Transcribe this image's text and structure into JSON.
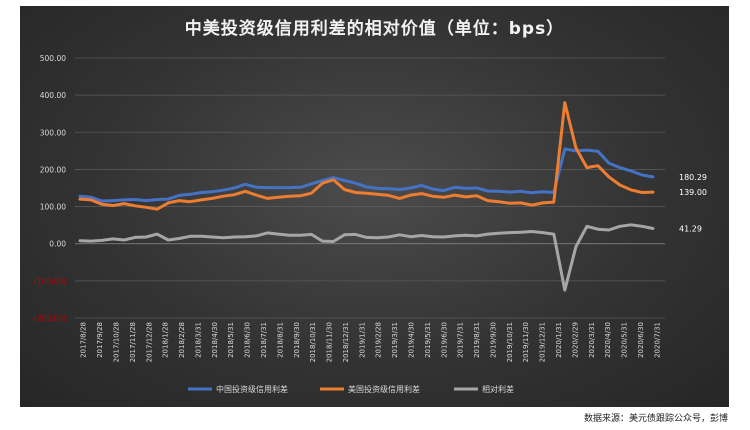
{
  "chart_data": {
    "type": "line",
    "title": "中美投资级信用利差的相对价值（单位：bps）",
    "xlabel": "",
    "ylabel": "",
    "ylim": [
      -200,
      500
    ],
    "y_ticks": [
      500,
      400,
      300,
      200,
      100,
      0,
      -100,
      -200
    ],
    "y_tick_labels": [
      "500.00",
      "400.00",
      "300.00",
      "200.00",
      "100.00",
      "0.00",
      "(100.00)",
      "(200.00)"
    ],
    "negative_tick_color": "#c00000",
    "tick_label_color": "#d9d9d9",
    "grid": true,
    "legend_position": "bottom",
    "x_tick_labels": [
      "2017/8/28",
      "2017/9/28",
      "2017/10/28",
      "2017/11/28",
      "2017/12/28",
      "2018/1/28",
      "2018/2/28",
      "2018/3/31",
      "2018/4/30",
      "2018/5/31",
      "2018/6/30",
      "2018/7/31",
      "2018/8/31",
      "2018/9/30",
      "2018/10/31",
      "2018/11/30",
      "2018/12/31",
      "2019/1/31",
      "2019/2/28",
      "2019/3/31",
      "2019/4/30",
      "2019/5/31",
      "2019/6/30",
      "2019/7/31",
      "2019/8/31",
      "2019/9/30",
      "2019/10/31",
      "2019/11/30",
      "2019/12/31",
      "2020/1/31",
      "2020/2/29",
      "2020/3/31",
      "2020/4/30",
      "2020/5/31",
      "2020/6/30",
      "2020/7/31"
    ],
    "series": [
      {
        "name": "中国投资级信用利差",
        "color": "#4472c4",
        "values": [
          128,
          125,
          115,
          116,
          118,
          119,
          116,
          119,
          120,
          130,
          133,
          138,
          140,
          144,
          150,
          160,
          152,
          151,
          151,
          151,
          152,
          161,
          170,
          178,
          170,
          163,
          153,
          149,
          148,
          146,
          150,
          157,
          147,
          143,
          152,
          149,
          150,
          142,
          141,
          139,
          141,
          137,
          140,
          138,
          255,
          250,
          252,
          249,
          217,
          205,
          196,
          185,
          180
        ],
        "end_label": "180.29"
      },
      {
        "name": "美国投资级信用利差",
        "color": "#ed7d31",
        "values": [
          120,
          118,
          106,
          103,
          108,
          102,
          98,
          93,
          110,
          116,
          113,
          118,
          122,
          128,
          132,
          141,
          131,
          122,
          125,
          128,
          129,
          136,
          163,
          172,
          146,
          138,
          136,
          133,
          130,
          122,
          131,
          135,
          128,
          125,
          131,
          126,
          129,
          116,
          113,
          109,
          110,
          104,
          110,
          112,
          380,
          258,
          205,
          210,
          180,
          158,
          145,
          138,
          139
        ],
        "end_label": "139.00"
      },
      {
        "name": "相对利差",
        "color": "#a6a6a6",
        "values": [
          8,
          7,
          9,
          13,
          10,
          17,
          18,
          26,
          10,
          14,
          20,
          20,
          18,
          16,
          18,
          19,
          21,
          29,
          26,
          23,
          23,
          25,
          7,
          6,
          24,
          25,
          17,
          16,
          18,
          24,
          19,
          22,
          19,
          18,
          21,
          23,
          21,
          26,
          28,
          30,
          31,
          33,
          30,
          26,
          -125,
          -8,
          47,
          39,
          37,
          47,
          51,
          47,
          41
        ],
        "end_label": "41.29"
      }
    ]
  },
  "source_note": "数据来源：美元债跟踪公众号，彭博"
}
